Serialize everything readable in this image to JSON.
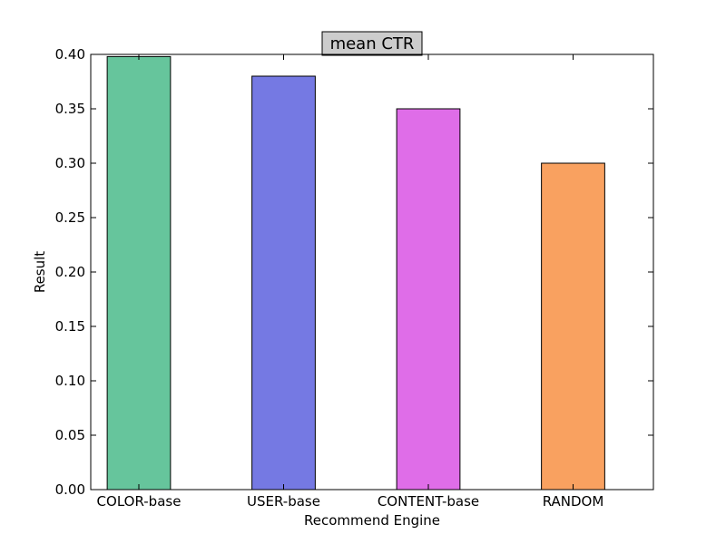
{
  "chart_data": {
    "type": "bar",
    "title": "mean CTR",
    "xlabel": "Recommend Engine",
    "ylabel": "Result",
    "categories": [
      "COLOR-base",
      "USER-base",
      "CONTENT-base",
      "RANDOM"
    ],
    "values": [
      0.398,
      0.38,
      0.35,
      0.3
    ],
    "colors": [
      "#66c59c",
      "#7579e3",
      "#df6de8",
      "#f9a160"
    ],
    "ylim": [
      0,
      0.4
    ],
    "yticks": [
      "0.00",
      "0.05",
      "0.10",
      "0.15",
      "0.20",
      "0.25",
      "0.30",
      "0.35",
      "0.40"
    ],
    "ytick_values": [
      0,
      0.05,
      0.1,
      0.15,
      0.2,
      0.25,
      0.3,
      0.35,
      0.4
    ],
    "grid": false,
    "title_box_color": "#cccccc"
  }
}
